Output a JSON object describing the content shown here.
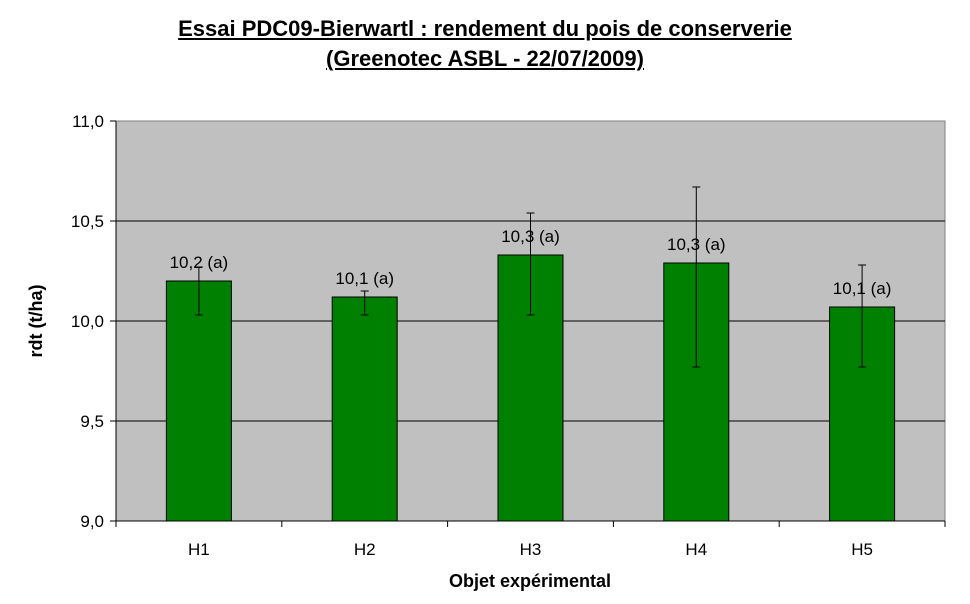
{
  "chart_data": {
    "type": "bar",
    "title_line1": "Essai PDC09-Bierwartl : rendement du pois de conserverie",
    "title_line2": "(Greenotec ASBL - 22/07/2009)",
    "xlabel": "Objet expérimental",
    "ylabel": "rdt (t/ha)",
    "categories": [
      "H1",
      "H2",
      "H3",
      "H4",
      "H5"
    ],
    "values": [
      10.2,
      10.12,
      10.33,
      10.29,
      10.07
    ],
    "error_low": [
      10.03,
      10.03,
      10.03,
      9.77,
      9.77
    ],
    "error_high": [
      10.27,
      10.15,
      10.54,
      10.67,
      10.28
    ],
    "data_labels": [
      "10,2 (a)",
      "10,1 (a)",
      "10,3 (a)",
      "10,3 (a)",
      "10,1 (a)"
    ],
    "yticks": [
      "9,0",
      "9,5",
      "10,0",
      "10,5",
      "11,0"
    ],
    "ylim": [
      9.0,
      11.0
    ],
    "grid": true,
    "legend": "none",
    "colors": {
      "bar": "#008000",
      "plot_bg": "#c0c0c0",
      "grid": "#000000"
    }
  }
}
